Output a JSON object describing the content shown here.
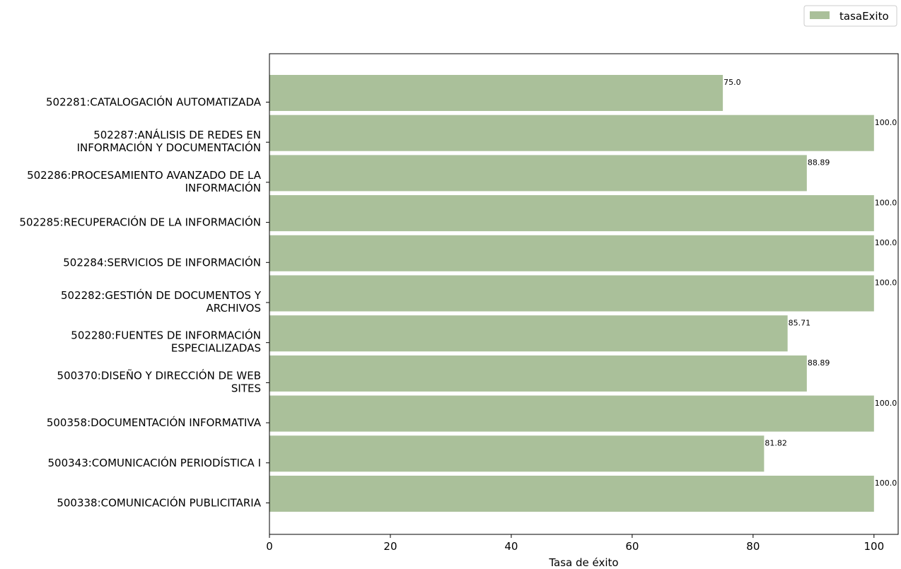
{
  "chart_data": {
    "type": "bar",
    "orientation": "horizontal",
    "categories": [
      "502281:CATALOGACIÓN AUTOMATIZADA",
      "502287:ANÁLISIS DE REDES EN INFORMACIÓN Y DOCUMENTACIÓN",
      "502286:PROCESAMIENTO AVANZADO DE LA INFORMACIÓN",
      "502285:RECUPERACIÓN DE LA INFORMACIÓN",
      "502284:SERVICIOS DE INFORMACIÓN",
      "502282:GESTIÓN DE DOCUMENTOS Y ARCHIVOS",
      "502280:FUENTES DE INFORMACIÓN ESPECIALIZADAS",
      "500370:DISEÑO Y DIRECCIÓN DE WEB SITES",
      "500358:DOCUMENTACIÓN INFORMATIVA",
      "500343:COMUNICACIÓN PERIODÍSTICA I",
      "500338:COMUNICACIÓN PUBLICITARIA"
    ],
    "category_lines": [
      [
        "502281:CATALOGACIÓN AUTOMATIZADA"
      ],
      [
        "502287:ANÁLISIS DE REDES EN",
        "INFORMACIÓN Y DOCUMENTACIÓN"
      ],
      [
        "502286:PROCESAMIENTO AVANZADO DE LA",
        "INFORMACIÓN"
      ],
      [
        "502285:RECUPERACIÓN DE LA INFORMACIÓN"
      ],
      [
        "502284:SERVICIOS DE INFORMACIÓN"
      ],
      [
        "502282:GESTIÓN DE DOCUMENTOS Y",
        "ARCHIVOS"
      ],
      [
        "502280:FUENTES DE INFORMACIÓN",
        "ESPECIALIZADAS"
      ],
      [
        "500370:DISEÑO Y DIRECCIÓN DE WEB",
        "SITES"
      ],
      [
        "500358:DOCUMENTACIÓN INFORMATIVA"
      ],
      [
        "500343:COMUNICACIÓN PERIODÍSTICA I"
      ],
      [
        "500338:COMUNICACIÓN PUBLICITARIA"
      ]
    ],
    "series": [
      {
        "name": "tasaExito",
        "values": [
          75.0,
          100.0,
          88.89,
          100.0,
          100.0,
          100.0,
          85.71,
          88.89,
          100.0,
          81.82,
          100.0
        ],
        "labels": [
          "75.0",
          "100.0",
          "88.89",
          "100.0",
          "100.0",
          "100.0",
          "85.71",
          "88.89",
          "100.0",
          "81.82",
          "100.0"
        ],
        "color": "#aac09a"
      }
    ],
    "title": "",
    "xlabel": "Tasa de éxito",
    "ylabel": "",
    "xlim": [
      0,
      104
    ],
    "xticks": [
      0,
      20,
      40,
      60,
      80,
      100
    ],
    "xtick_labels": [
      "0",
      "20",
      "40",
      "60",
      "80",
      "100"
    ],
    "grid": false,
    "legend": {
      "placement": "top-right",
      "entries": [
        "tasaExito"
      ]
    }
  }
}
